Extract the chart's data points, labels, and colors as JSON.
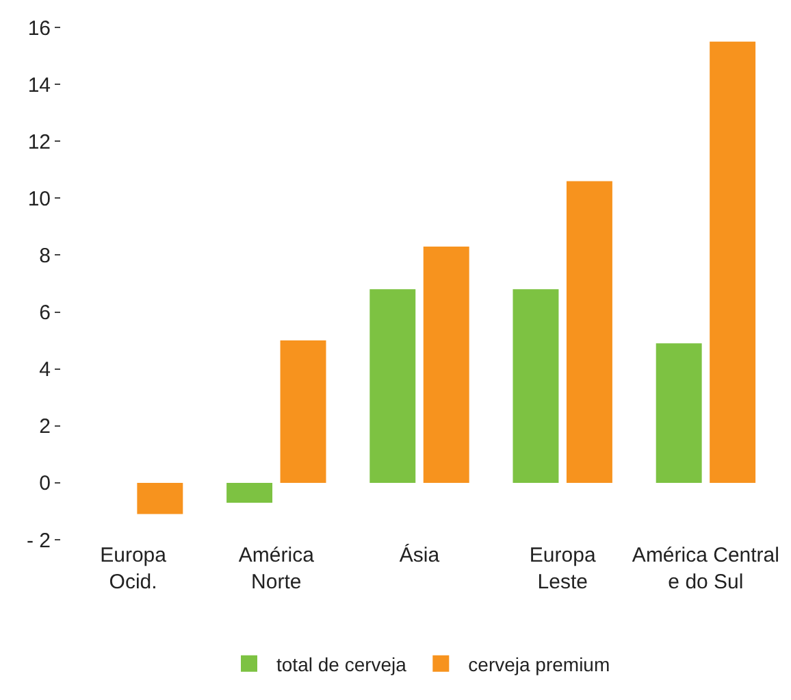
{
  "chart_data": {
    "type": "bar",
    "categories": [
      "Europa\nOcid.",
      "América\nNorte",
      "Ásia",
      "Europa\nLeste",
      "América Central\ne do Sul"
    ],
    "series": [
      {
        "name": "total de cerveja",
        "color": "#7dc242",
        "values": [
          0,
          -0.7,
          6.8,
          6.8,
          4.9
        ]
      },
      {
        "name": "cerveja premium",
        "color": "#f7931e",
        "values": [
          -1.1,
          5.0,
          8.3,
          10.6,
          15.5
        ]
      }
    ],
    "ylim": [
      -2,
      16
    ],
    "yticks": [
      {
        "value": -2,
        "label": "- 2"
      },
      0,
      2,
      4,
      6,
      8,
      10,
      12,
      14,
      16
    ],
    "legend": "bottom"
  }
}
